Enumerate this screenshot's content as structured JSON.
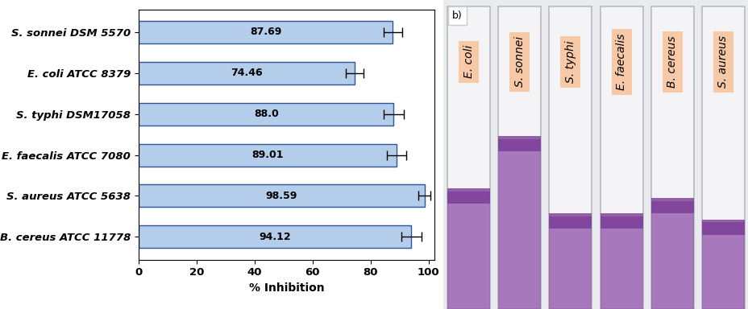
{
  "chart_data": {
    "type": "bar",
    "orientation": "horizontal",
    "categories": [
      "S. sonnei DSM 5570",
      "E. coli ATCC 8379",
      "S. typhi DSM17058",
      "E. faecalis ATCC 7080",
      "S. aureus ATCC 5638",
      "B. cereus ATCC 11778"
    ],
    "values": [
      87.69,
      74.46,
      88.0,
      89.01,
      98.59,
      94.12
    ],
    "value_labels": [
      "87.69",
      "74.46",
      "88.0",
      "89.01",
      "98.59",
      "94.12"
    ],
    "errors": [
      3.2,
      3.0,
      3.4,
      3.3,
      2.0,
      3.4
    ],
    "xlabel": "% Inhibition",
    "xlim": [
      0,
      102
    ],
    "xticks": [
      0,
      20,
      40,
      60,
      80,
      100
    ],
    "color": "#b4cdea",
    "data_labels": true,
    "grid": false
  },
  "photo": {
    "label": "b)",
    "tubes": [
      "E. coli",
      "S. sonnei",
      "S. typhi",
      "E. faecalis",
      "B. cereus",
      "S. aureus"
    ]
  }
}
